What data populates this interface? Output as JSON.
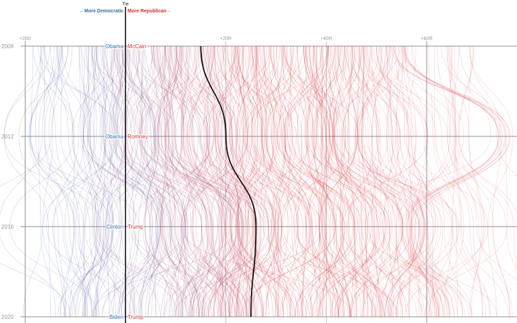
{
  "chart_data": {
    "type": "line",
    "title": "",
    "xlabel": "",
    "ylabel": "",
    "x_axis": {
      "tick_values": [
        -20,
        20,
        40,
        60
      ],
      "tick_labels": [
        "+20D",
        "+20R",
        "+40R",
        "+60R"
      ],
      "range": [
        -25,
        78
      ]
    },
    "y_axis": {
      "years": [
        2008,
        2012,
        2016,
        2020
      ],
      "labels": [
        "2008",
        "2012",
        "2016",
        "2020"
      ]
    },
    "tie": {
      "label": "Tie",
      "value": 0
    },
    "legend": {
      "more_democratic": "←More Democratic",
      "more_republican": "More Republican→"
    },
    "candidates": [
      {
        "year": 2008,
        "dem": "Obama",
        "rep": "McCain"
      },
      {
        "year": 2012,
        "dem": "Obama",
        "rep": "Romney"
      },
      {
        "year": 2016,
        "dem": "Clinton",
        "rep": "Trump"
      },
      {
        "year": 2020,
        "dem": "Biden",
        "rep": "Trump"
      }
    ],
    "highlight_series": {
      "values": [
        15,
        20,
        26,
        25
      ]
    },
    "background_series": {
      "count": 420,
      "description": "Many thin translucent lines, one per geographic unit, coloured from blue (Democratic margin) to red (Republican margin)"
    },
    "grid": true
  }
}
